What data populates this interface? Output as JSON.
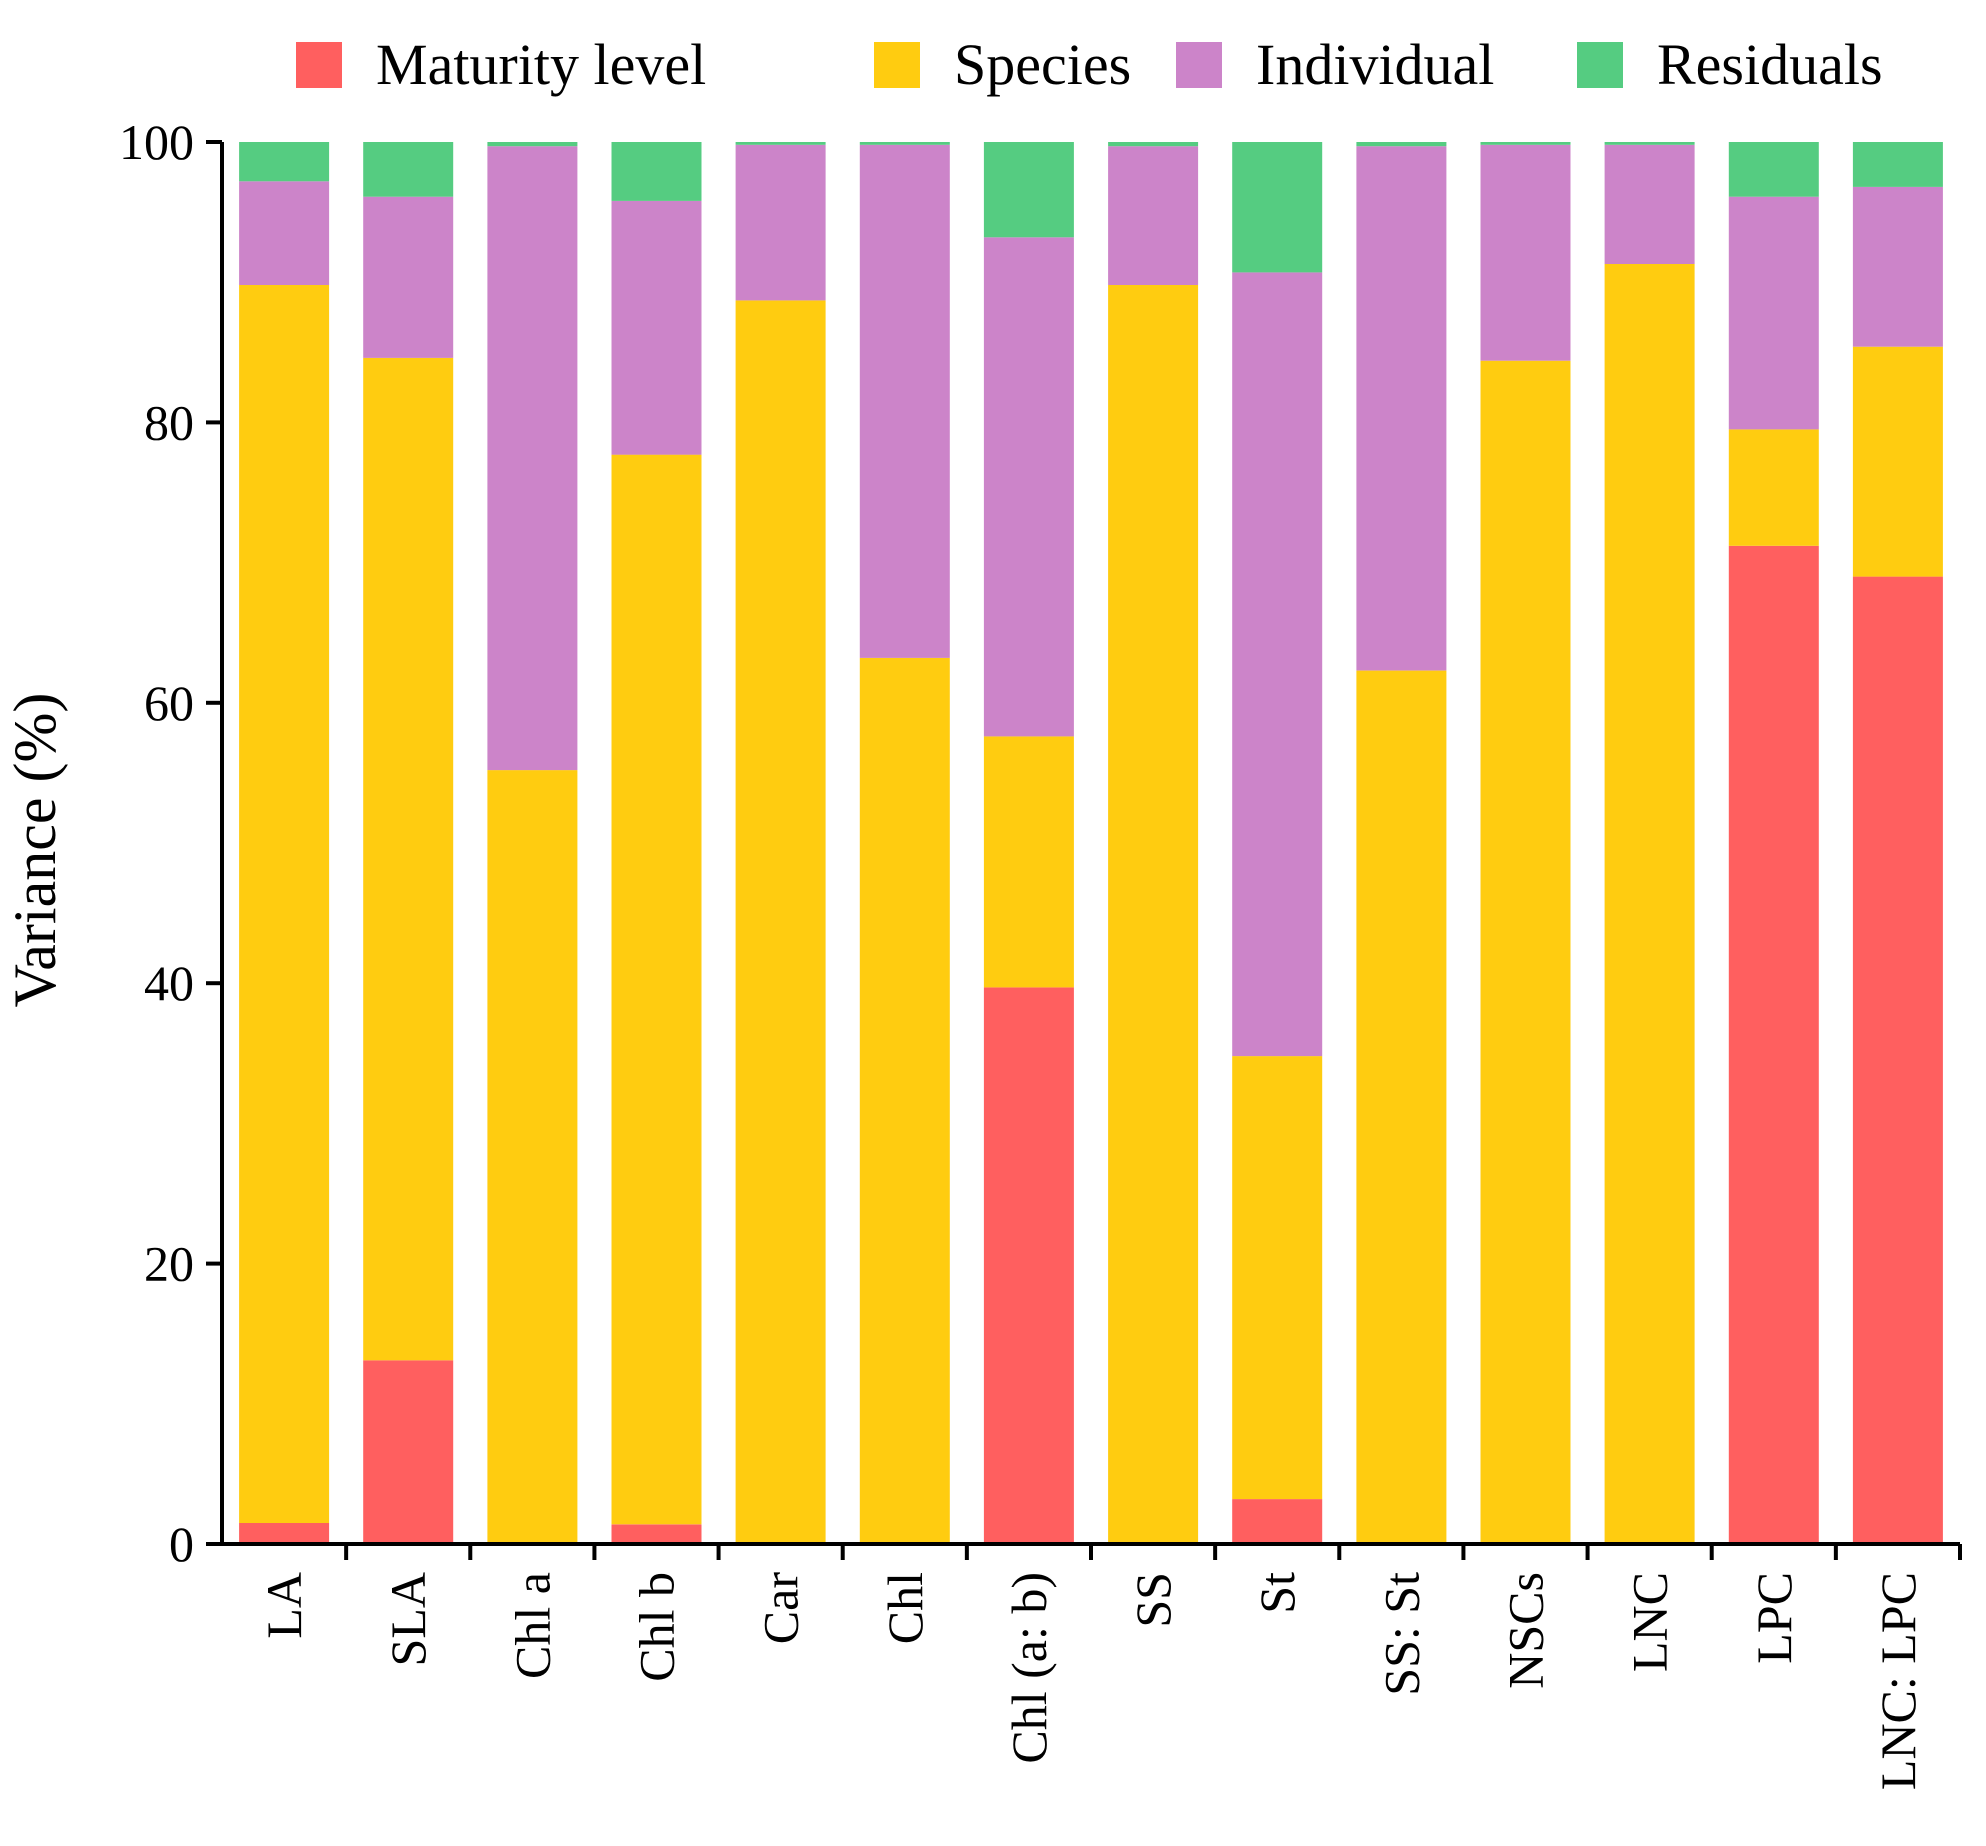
{
  "chart_data": {
    "type": "bar",
    "stacked": true,
    "title": "",
    "xlabel": "",
    "ylabel": "Variance (%)",
    "ylim": [
      0,
      100
    ],
    "yticks": [
      0,
      20,
      40,
      60,
      80,
      100
    ],
    "legend_position": "top",
    "categories": [
      "LA",
      "SLA",
      "Chl a",
      "Chl b",
      "Car",
      "Chl",
      "Chl (a: b)",
      "SS",
      "St",
      "SS: St",
      "NSCs",
      "LNC",
      "LPC",
      "LNC: LPC"
    ],
    "series": [
      {
        "name": "Maturity level",
        "color": "#FF5F5F",
        "values": [
          1.5,
          13.1,
          0,
          1.4,
          0,
          0,
          39.7,
          0,
          3.2,
          0,
          0,
          0,
          71.2,
          69.0
        ]
      },
      {
        "name": "Species",
        "color": "#FFCC10",
        "values": [
          88.3,
          71.5,
          55.2,
          76.3,
          88.7,
          63.2,
          17.9,
          89.8,
          31.6,
          62.3,
          84.4,
          91.3,
          8.3,
          16.4
        ]
      },
      {
        "name": "Individual",
        "color": "#CC84C9",
        "values": [
          7.4,
          11.5,
          44.5,
          18.1,
          11.1,
          36.6,
          35.6,
          9.9,
          55.9,
          37.4,
          15.4,
          8.5,
          16.6,
          11.4
        ]
      },
      {
        "name": "Residuals",
        "color": "#55CC81",
        "values": [
          2.8,
          3.9,
          0.3,
          4.2,
          0.2,
          0.2,
          6.8,
          0.3,
          9.3,
          0.3,
          0.2,
          0.2,
          3.9,
          3.2
        ]
      }
    ]
  }
}
